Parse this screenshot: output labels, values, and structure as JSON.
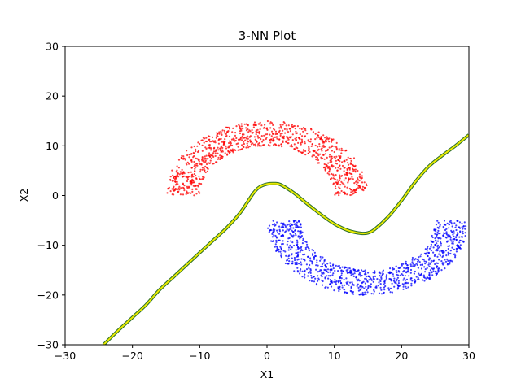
{
  "chart_data": {
    "type": "scatter",
    "title": "3-NN Plot",
    "xlabel": "X1",
    "ylabel": "X2",
    "xlim": [
      -30,
      30
    ],
    "ylim": [
      -30,
      30
    ],
    "xticks": [
      -30,
      -20,
      -10,
      0,
      10,
      20,
      30
    ],
    "yticks": [
      -30,
      -20,
      -10,
      0,
      10,
      20,
      30
    ],
    "grid": false,
    "series": [
      {
        "kind": "scatter",
        "color": "#ff0000",
        "shape": "upper-half-ring",
        "center": [
          0,
          0
        ],
        "inner_radius": 10,
        "outer_radius": 15,
        "n_points": 1000
      },
      {
        "kind": "scatter",
        "color": "#0000ff",
        "shape": "lower-half-ring",
        "center": [
          15,
          -5
        ],
        "inner_radius": 10,
        "outer_radius": 15,
        "n_points": 1000
      },
      {
        "kind": "line",
        "color": "#e8e800",
        "outline_color": "#2a6e2a",
        "x": [
          -24.3,
          -22,
          -20,
          -18,
          -16,
          -14,
          -12,
          -10,
          -8,
          -6,
          -4,
          -2,
          -1,
          0,
          1,
          2,
          4,
          6,
          8,
          10,
          12,
          14,
          15,
          16,
          18,
          20,
          22,
          24,
          26,
          28,
          30
        ],
        "y": [
          -30,
          -27,
          -24.5,
          -22,
          -19,
          -16.5,
          -14,
          -11.5,
          -9,
          -6.5,
          -3.5,
          0.5,
          1.8,
          2.3,
          2.4,
          2.2,
          0.5,
          -1.7,
          -3.8,
          -5.7,
          -7,
          -7.6,
          -7.5,
          -6.8,
          -4.3,
          -1,
          2.7,
          5.8,
          8,
          10,
          12.2
        ]
      }
    ]
  }
}
